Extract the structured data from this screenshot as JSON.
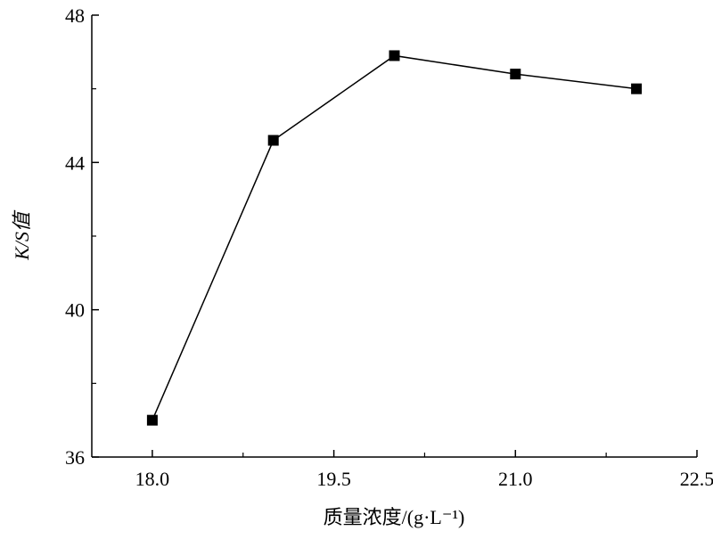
{
  "chart_data": {
    "type": "line",
    "x_label": "质量浓度/(g·L⁻¹)",
    "y_label": "K/S值",
    "x": [
      18,
      19,
      20,
      21,
      22
    ],
    "series": [
      {
        "name": "K/S",
        "color": "#000000",
        "values": [
          37.0,
          44.6,
          46.9,
          46.4,
          46.0
        ]
      }
    ],
    "xlim": [
      17.5,
      22.5
    ],
    "xticks": [
      {
        "value": 18,
        "label": "18.0"
      },
      {
        "value": 19.5,
        "label": "19.5"
      },
      {
        "value": 21,
        "label": "21.0"
      },
      {
        "value": 22.5,
        "label": "22.5"
      }
    ],
    "ylim": [
      36,
      48
    ],
    "yticks": [
      36,
      40,
      44,
      48
    ],
    "grid": false
  }
}
